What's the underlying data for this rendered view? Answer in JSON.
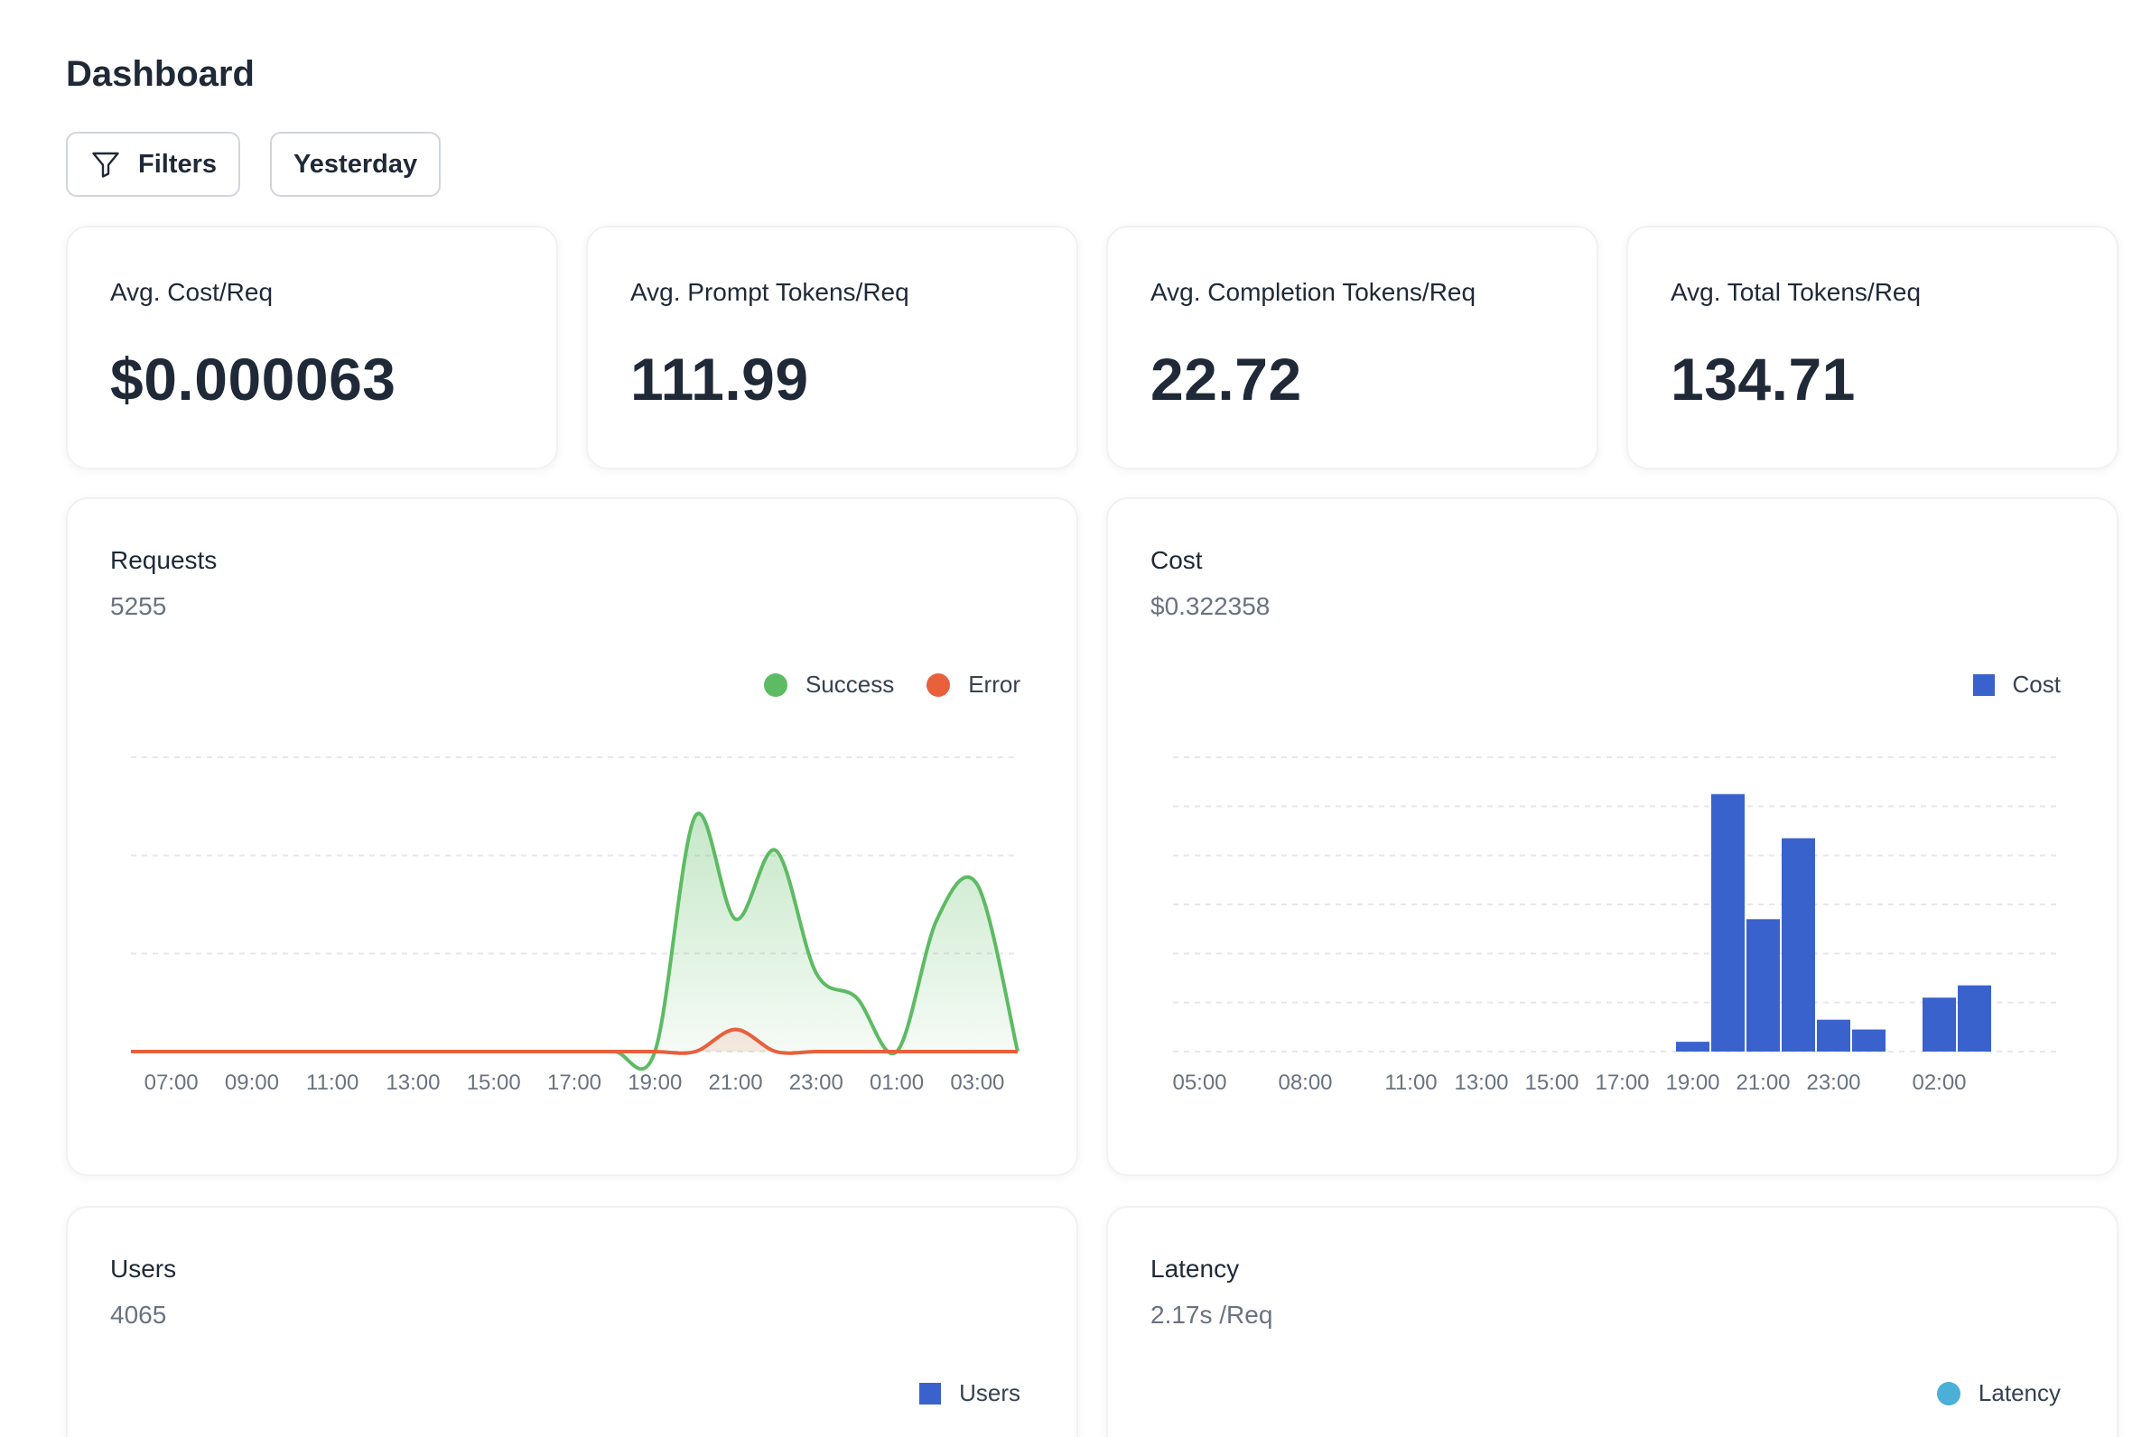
{
  "header": {
    "title": "Dashboard"
  },
  "toolbar": {
    "filters_label": "Filters",
    "range_label": "Yesterday"
  },
  "stats": [
    {
      "label": "Avg. Cost/Req",
      "value": "$0.000063"
    },
    {
      "label": "Avg. Prompt Tokens/Req",
      "value": "111.99"
    },
    {
      "label": "Avg. Completion Tokens/Req",
      "value": "22.72"
    },
    {
      "label": "Avg. Total Tokens/Req",
      "value": "134.71"
    }
  ],
  "panels": {
    "requests": {
      "title": "Requests",
      "subtitle": "5255",
      "legend": [
        "Success",
        "Error"
      ]
    },
    "cost": {
      "title": "Cost",
      "subtitle": "$0.322358",
      "legend": [
        "Cost"
      ]
    },
    "users": {
      "title": "Users",
      "subtitle": "4065",
      "legend": [
        "Users"
      ]
    },
    "latency": {
      "title": "Latency",
      "subtitle": "2.17s /Req",
      "legend": [
        "Latency"
      ]
    }
  },
  "colors": {
    "success": "#5dbb63",
    "error": "#e8603c",
    "cost": "#3a62cc",
    "users": "#3a62cc",
    "latency": "#4bafd8",
    "grid": "#e5e7eb",
    "tick": "#6b7280"
  },
  "chart_data": [
    {
      "type": "area",
      "ticks": [
        "07:00",
        "09:00",
        "11:00",
        "13:00",
        "15:00",
        "17:00",
        "19:00",
        "21:00",
        "23:00",
        "01:00",
        "03:00"
      ],
      "x": [
        "06:00",
        "07:00",
        "08:00",
        "09:00",
        "10:00",
        "11:00",
        "12:00",
        "13:00",
        "14:00",
        "15:00",
        "16:00",
        "17:00",
        "18:00",
        "19:00",
        "20:00",
        "21:00",
        "22:00",
        "23:00",
        "00:00",
        "01:00",
        "02:00",
        "03:00",
        "04:00"
      ],
      "ylim": [
        0,
        600
      ],
      "series": [
        {
          "name": "Success",
          "values": [
            0,
            0,
            0,
            0,
            0,
            0,
            0,
            0,
            0,
            0,
            0,
            0,
            0,
            0,
            480,
            270,
            410,
            160,
            110,
            0,
            270,
            340,
            0
          ]
        },
        {
          "name": "Error",
          "values": [
            0,
            0,
            0,
            0,
            0,
            0,
            0,
            0,
            0,
            0,
            0,
            0,
            0,
            0,
            0,
            45,
            0,
            0,
            0,
            0,
            0,
            0,
            0
          ]
        }
      ]
    },
    {
      "type": "bar",
      "ticks": [
        "05:00",
        "08:00",
        "11:00",
        "13:00",
        "15:00",
        "17:00",
        "19:00",
        "21:00",
        "23:00",
        "02:00"
      ],
      "categories": [
        "05:00",
        "06:00",
        "07:00",
        "08:00",
        "09:00",
        "10:00",
        "11:00",
        "12:00",
        "13:00",
        "14:00",
        "15:00",
        "16:00",
        "17:00",
        "18:00",
        "19:00",
        "20:00",
        "21:00",
        "22:00",
        "23:00",
        "00:00",
        "01:00",
        "02:00",
        "03:00"
      ],
      "ylim": [
        0,
        0.12
      ],
      "series": [
        {
          "name": "Cost",
          "values": [
            0,
            0,
            0,
            0,
            0,
            0,
            0,
            0,
            0,
            0,
            0,
            0,
            0,
            0,
            0.004,
            0.105,
            0.054,
            0.087,
            0.013,
            0.009,
            0,
            0.022,
            0.027
          ]
        }
      ]
    }
  ]
}
